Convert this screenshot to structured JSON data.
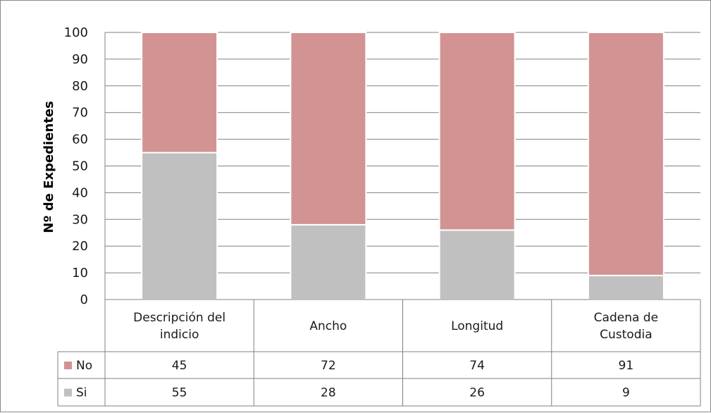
{
  "chart_data": {
    "type": "bar",
    "stacked": true,
    "title": "",
    "xlabel": "",
    "ylabel": "Nº de Expedientes",
    "ylim": [
      0,
      100
    ],
    "yticks": [
      0,
      10,
      20,
      30,
      40,
      50,
      60,
      70,
      80,
      90,
      100
    ],
    "grid": true,
    "categories": [
      [
        "Descripción del",
        "indicio"
      ],
      [
        "Ancho"
      ],
      [
        "Longitud"
      ],
      [
        "Cadena de",
        "Custodia"
      ]
    ],
    "series": [
      {
        "name": "Si",
        "values": [
          55,
          28,
          26,
          9
        ],
        "color": "#c0c0c0"
      },
      {
        "name": "No",
        "values": [
          45,
          72,
          74,
          91
        ],
        "color": "#d39393"
      }
    ],
    "data_table": {
      "rows": [
        {
          "series": "No",
          "values": [
            "45",
            "72",
            "74",
            "91"
          ]
        },
        {
          "series": "Si",
          "values": [
            "55",
            "28",
            "26",
            "9"
          ]
        }
      ]
    }
  }
}
